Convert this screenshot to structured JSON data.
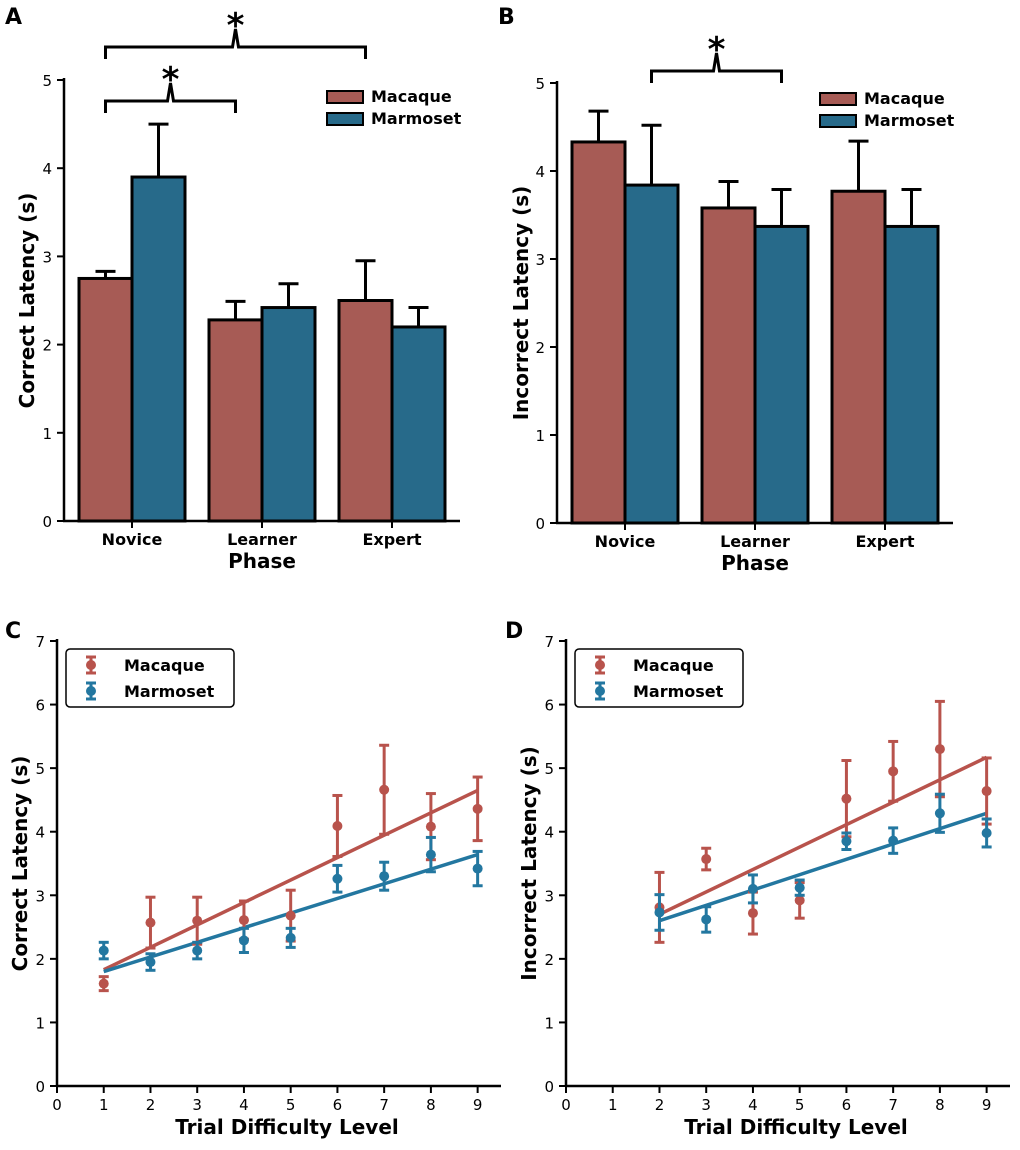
{
  "colors": {
    "macaque": "#A75B55",
    "marmoset": "#276A8A",
    "macaque_line": "#B8534C",
    "marmoset_line": "#2377A0"
  },
  "series_names": {
    "macaque": "Macaque",
    "marmoset": "Marmoset"
  },
  "chart_data": [
    {
      "panel": "A",
      "type": "bar",
      "xlabel": "Phase",
      "ylabel": "Correct Latency (s)",
      "ylim": [
        0,
        5
      ],
      "yticks": [
        0,
        1,
        2,
        3,
        4,
        5
      ],
      "categories": [
        "Novice",
        "Learner",
        "Expert"
      ],
      "series": [
        {
          "name": "Macaque",
          "values": [
            2.75,
            2.28,
            2.5
          ],
          "err": [
            0.08,
            0.21,
            0.45
          ]
        },
        {
          "name": "Marmoset",
          "values": [
            3.9,
            2.42,
            2.2
          ],
          "err": [
            0.6,
            0.27,
            0.22
          ]
        }
      ],
      "legend": "top-right",
      "significance": [
        {
          "from_category": 0,
          "from_series": 0,
          "to_category": 1,
          "to_series": 0,
          "label": "*",
          "level": 1
        },
        {
          "from_category": 0,
          "from_series": 0,
          "to_category": 2,
          "to_series": 0,
          "label": "*",
          "level": 2
        }
      ]
    },
    {
      "panel": "B",
      "type": "bar",
      "xlabel": "Phase",
      "ylabel": "Incorrect Latency (s)",
      "ylim": [
        0,
        5
      ],
      "yticks": [
        0,
        1,
        2,
        3,
        4,
        5
      ],
      "categories": [
        "Novice",
        "Learner",
        "Expert"
      ],
      "series": [
        {
          "name": "Macaque",
          "values": [
            4.33,
            3.58,
            3.77
          ],
          "err": [
            0.35,
            0.3,
            0.57
          ]
        },
        {
          "name": "Marmoset",
          "values": [
            3.84,
            3.37,
            3.37
          ],
          "err": [
            0.68,
            0.42,
            0.42
          ]
        }
      ],
      "legend": "top-right",
      "significance": [
        {
          "from_category": 0,
          "from_series": 1,
          "to_category": 1,
          "to_series": 1,
          "label": "*",
          "level": 1
        }
      ]
    },
    {
      "panel": "C",
      "type": "scatter",
      "xlabel": "Trial Difficulty Level",
      "ylabel": "Correct Latency (s)",
      "xlim": [
        0,
        9.5
      ],
      "ylim": [
        0,
        7
      ],
      "xticks": [
        0,
        1,
        2,
        3,
        4,
        5,
        6,
        7,
        8,
        9
      ],
      "yticks": [
        0,
        1,
        2,
        3,
        4,
        5,
        6,
        7
      ],
      "legend": "top-left",
      "series": [
        {
          "name": "Macaque",
          "points": [
            {
              "x": 1,
              "y": 1.61,
              "err": 0.11
            },
            {
              "x": 2,
              "y": 2.57,
              "err": 0.4
            },
            {
              "x": 3,
              "y": 2.6,
              "err": 0.37
            },
            {
              "x": 4,
              "y": 2.61,
              "err": 0.3
            },
            {
              "x": 5,
              "y": 2.68,
              "err": 0.4
            },
            {
              "x": 6,
              "y": 4.09,
              "err": 0.48
            },
            {
              "x": 7,
              "y": 4.66,
              "err": 0.7
            },
            {
              "x": 8,
              "y": 4.08,
              "err": 0.52
            },
            {
              "x": 9,
              "y": 4.36,
              "err": 0.5
            }
          ],
          "fit": [
            [
              1,
              1.83
            ],
            [
              9,
              4.65
            ]
          ]
        },
        {
          "name": "Marmoset",
          "points": [
            {
              "x": 1,
              "y": 2.13,
              "err": 0.13
            },
            {
              "x": 2,
              "y": 1.95,
              "err": 0.13
            },
            {
              "x": 3,
              "y": 2.13,
              "err": 0.13
            },
            {
              "x": 4,
              "y": 2.29,
              "err": 0.19
            },
            {
              "x": 5,
              "y": 2.33,
              "err": 0.15
            },
            {
              "x": 6,
              "y": 3.26,
              "err": 0.21
            },
            {
              "x": 7,
              "y": 3.3,
              "err": 0.22
            },
            {
              "x": 8,
              "y": 3.64,
              "err": 0.27
            },
            {
              "x": 9,
              "y": 3.42,
              "err": 0.27
            }
          ],
          "fit": [
            [
              1,
              1.8
            ],
            [
              9,
              3.64
            ]
          ]
        }
      ]
    },
    {
      "panel": "D",
      "type": "scatter",
      "xlabel": "Trial Difficulty Level",
      "ylabel": "Incorrect Latency (s)",
      "xlim": [
        0,
        9.5
      ],
      "ylim": [
        0,
        7
      ],
      "xticks": [
        0,
        1,
        2,
        3,
        4,
        5,
        6,
        7,
        8,
        9
      ],
      "yticks": [
        0,
        1,
        2,
        3,
        4,
        5,
        6,
        7
      ],
      "legend": "top-left",
      "series": [
        {
          "name": "Macaque",
          "points": [
            {
              "x": 2,
              "y": 2.81,
              "err": 0.55
            },
            {
              "x": 3,
              "y": 3.57,
              "err": 0.17
            },
            {
              "x": 4,
              "y": 2.72,
              "err": 0.33
            },
            {
              "x": 5,
              "y": 2.92,
              "err": 0.28
            },
            {
              "x": 6,
              "y": 4.52,
              "err": 0.6
            },
            {
              "x": 7,
              "y": 4.95,
              "err": 0.47
            },
            {
              "x": 8,
              "y": 5.3,
              "err": 0.75
            },
            {
              "x": 9,
              "y": 4.64,
              "err": 0.52
            }
          ],
          "fit": [
            [
              2,
              2.7
            ],
            [
              9,
              5.17
            ]
          ]
        },
        {
          "name": "Marmoset",
          "points": [
            {
              "x": 2,
              "y": 2.73,
              "err": 0.28
            },
            {
              "x": 3,
              "y": 2.62,
              "err": 0.2
            },
            {
              "x": 4,
              "y": 3.1,
              "err": 0.22
            },
            {
              "x": 5,
              "y": 3.12,
              "err": 0.12
            },
            {
              "x": 6,
              "y": 3.85,
              "err": 0.13
            },
            {
              "x": 7,
              "y": 3.86,
              "err": 0.2
            },
            {
              "x": 8,
              "y": 4.29,
              "err": 0.3
            },
            {
              "x": 9,
              "y": 3.98,
              "err": 0.22
            }
          ],
          "fit": [
            [
              2,
              2.6
            ],
            [
              9,
              4.29
            ]
          ]
        }
      ]
    }
  ]
}
